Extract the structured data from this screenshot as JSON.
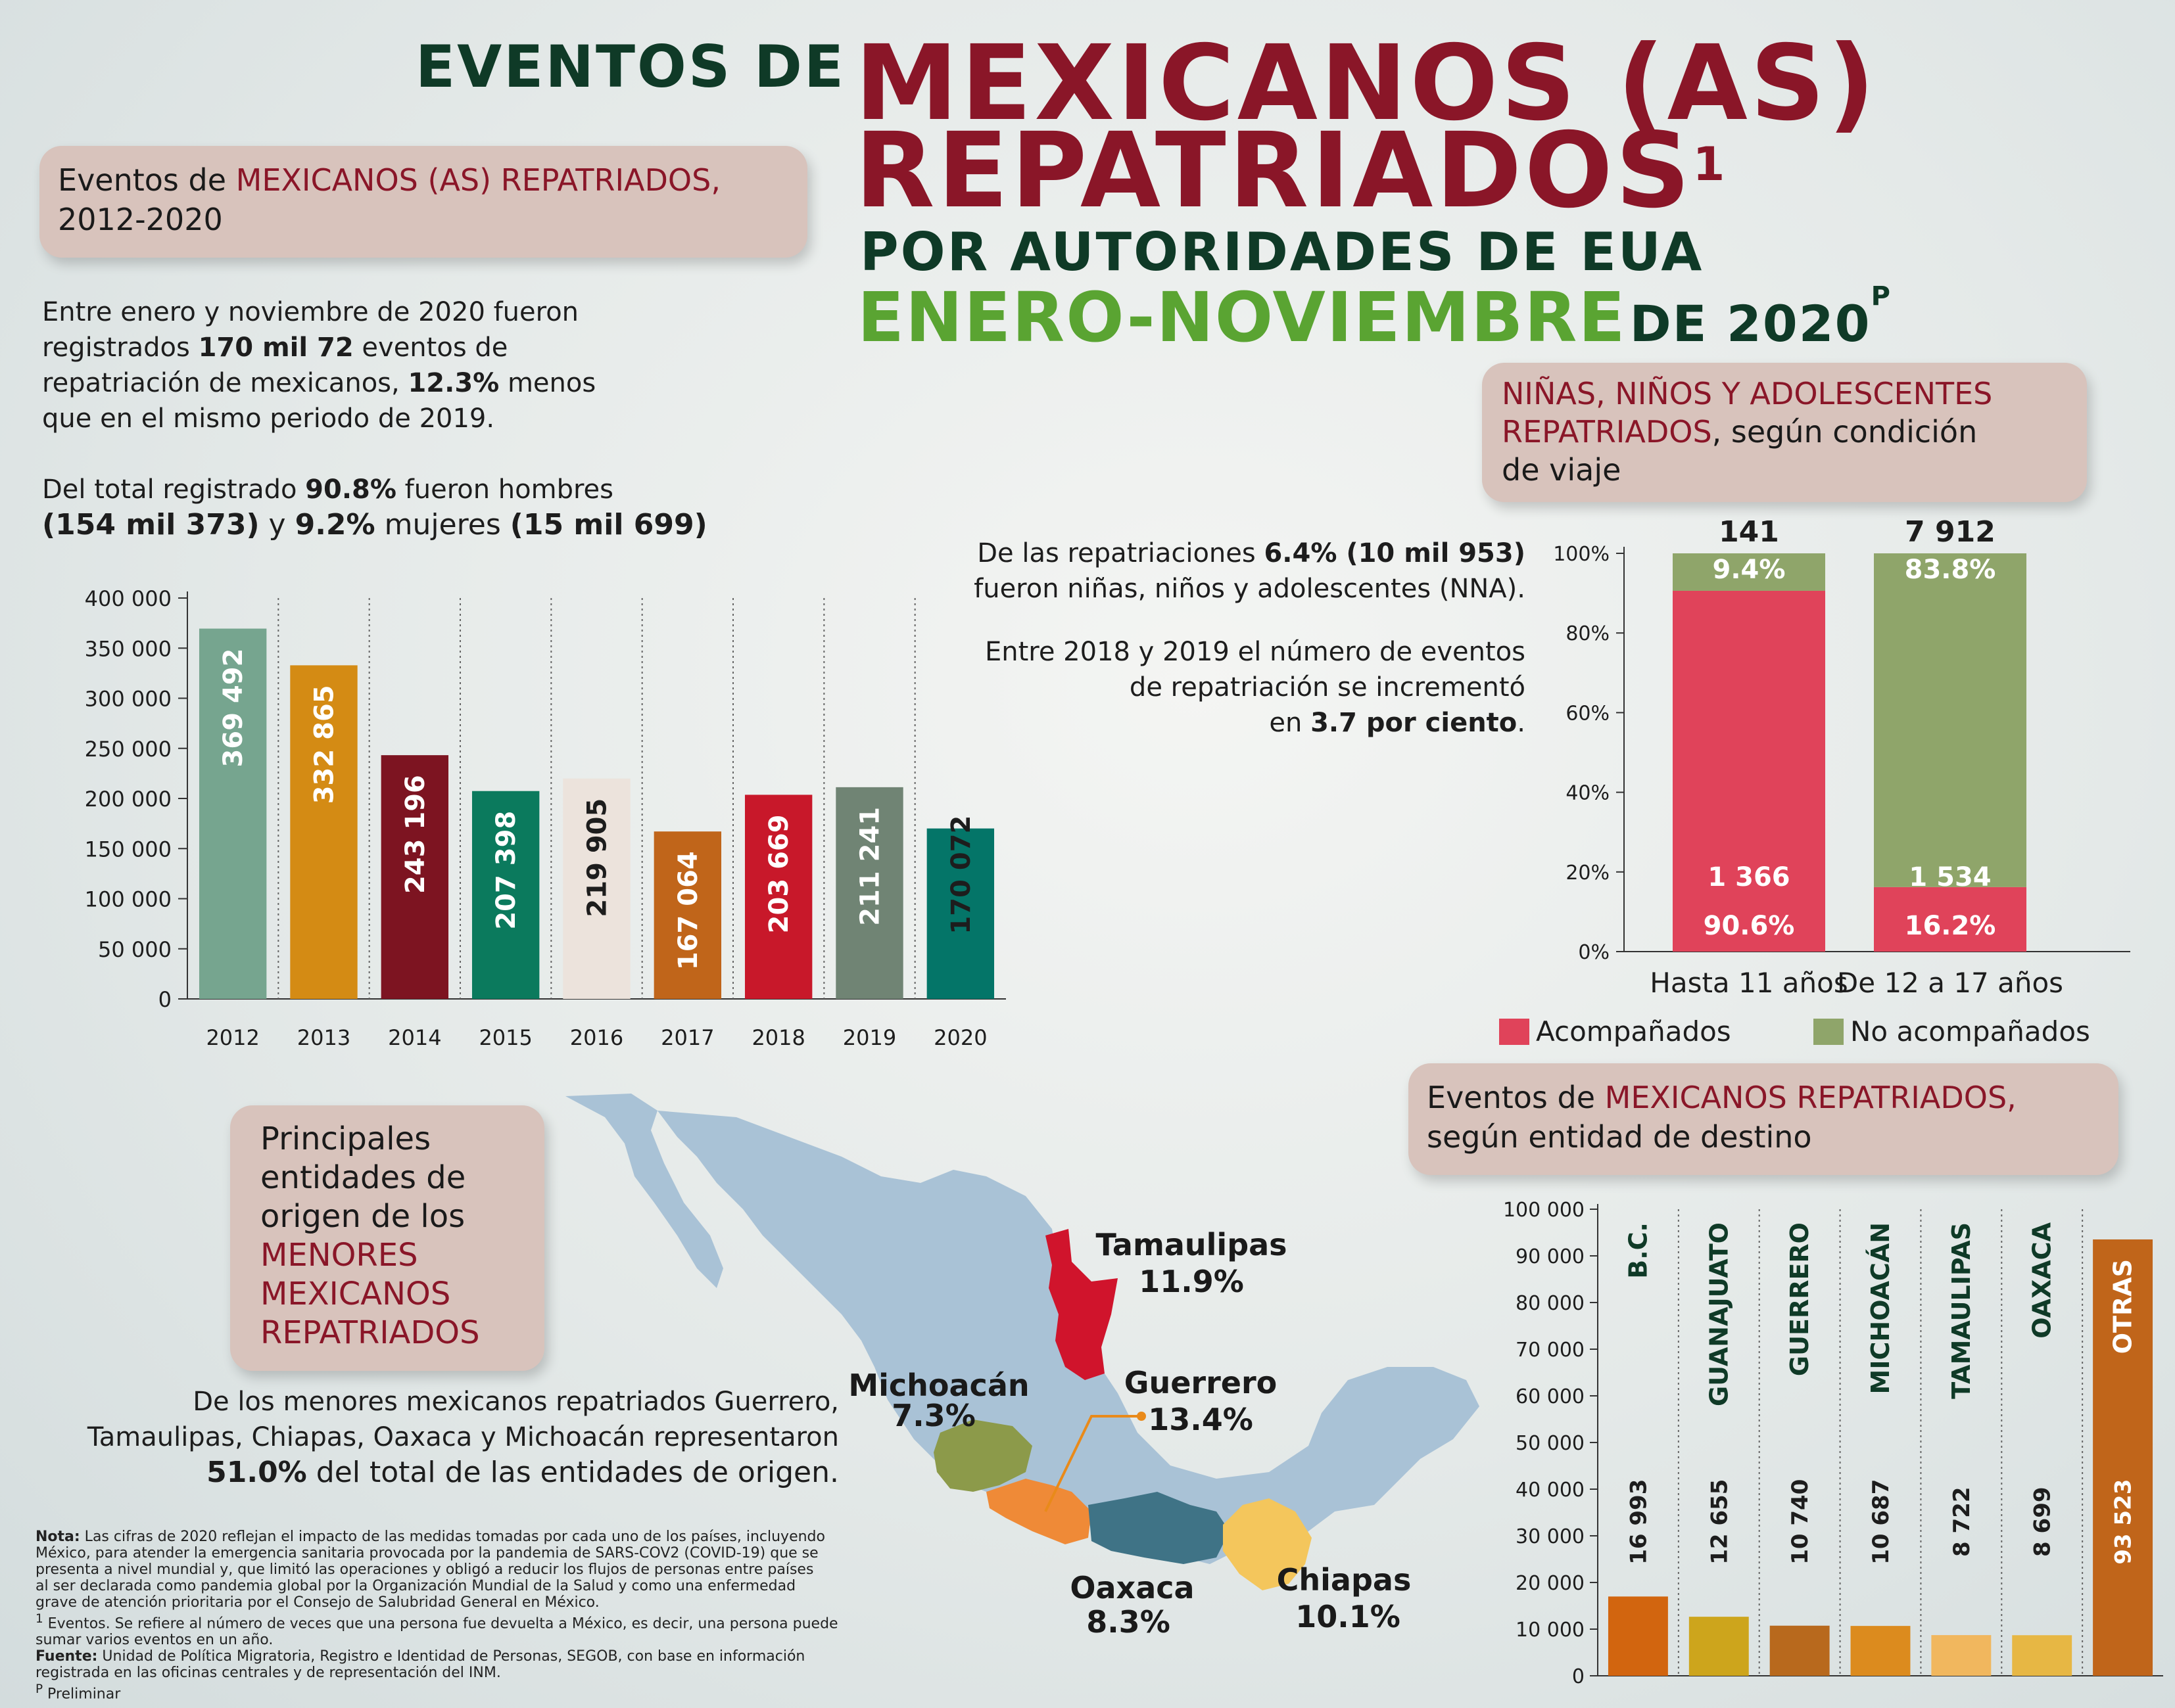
{
  "title": {
    "line1": "EVENTOS DE",
    "line2": "MEXICANOS (AS)",
    "line3": "REPATRIADOS",
    "line3_sup": "1",
    "line4": "POR AUTORIDADES DE EUA",
    "line5_a": "ENERO-NOVIEMBRE",
    "line5_b": "DE 2020",
    "line5_sup": "P"
  },
  "box_events": {
    "a": "Eventos de ",
    "b": "MEXICANOS (AS) REPATRIADOS,",
    "c": "2012-2020"
  },
  "intro": {
    "p1_a": "Entre enero y noviembre de 2020 fueron",
    "p1_b": "registrados ",
    "p1_b_bold": "170 mil 72",
    "p1_b_end": " eventos de",
    "p1_c": "repatriación de mexicanos, ",
    "p1_c_bold": "12.3%",
    "p1_c_end": " menos",
    "p1_d": "que en el mismo periodo de 2019.",
    "p2_a": "Del total registrado ",
    "p2_a_bold": "90.8%",
    "p2_a_end": " fueron hombres",
    "p2_b_bold1": "(154 mil 373)",
    "p2_b_mid": " y ",
    "p2_b_bold2": "9.2%",
    "p2_b_mid2": " mujeres ",
    "p2_b_bold3": "(15 mil 699)"
  },
  "nna_text": {
    "l1_a": "De las repatriaciones ",
    "l1_bold": "6.4% (10 mil 953)",
    "l2": "fueron niñas, niños y adolescentes (NNA).",
    "l3": "Entre 2018 y 2019 el número de eventos",
    "l4": "de repatriación se incrementó",
    "l5_a": "en ",
    "l5_bold": "3.7 por ciento",
    "l5_end": "."
  },
  "box_nna": {
    "a": "NIÑAS, NIÑOS Y ADOLESCENTES",
    "b": "REPATRIADOS",
    "c": ", según condición",
    "d": "de viaje"
  },
  "box_minors": {
    "a": "Principales",
    "b": "entidades de",
    "c": "origen de los",
    "d": "MENORES",
    "e": "MEXICANOS",
    "f": "REPATRIADOS"
  },
  "minors_text": {
    "l1": "De los menores mexicanos repatriados Guerrero,",
    "l2": "Tamaulipas, Chiapas, Oaxaca y Michoacán representaron",
    "l3_bold": "51.0%",
    "l3_end": " del total de las entidades de origen."
  },
  "box_dest": {
    "a": "Eventos de ",
    "b": "MEXICANOS REPATRIADOS,",
    "c": "según entidad de destino"
  },
  "map_labels": [
    {
      "name": "Tamaulipas",
      "value": "11.9%"
    },
    {
      "name": "Guerrero",
      "value": "13.4%"
    },
    {
      "name": "Michoacán",
      "value": "7.3%"
    },
    {
      "name": "Oaxaca",
      "value": "8.3%"
    },
    {
      "name": "Chiapas",
      "value": "10.1%"
    }
  ],
  "colors": {
    "tamaulipas": "#d0142c",
    "guerrero": "#ef8a37",
    "michoacan": "#8c9a4a",
    "oaxaca": "#3f7386",
    "chiapas": "#f4c65c",
    "map_base": "#a9c2d6"
  },
  "chart_data": [
    {
      "type": "bar",
      "categories": [
        "2012",
        "2013",
        "2014",
        "2015",
        "2016",
        "2017",
        "2018",
        "2019",
        "2020"
      ],
      "values": [
        369492,
        332865,
        243196,
        207398,
        219905,
        167064,
        203669,
        211241,
        170072
      ],
      "value_labels": [
        "369 492",
        "332 865",
        "243 196",
        "207 398",
        "219 905",
        "167 064",
        "203 669",
        "211 241",
        "170 072"
      ],
      "colors": [
        "#76a58f",
        "#d48b14",
        "#7d1421",
        "#0b7a5d",
        "#ece3dc",
        "#c0651a",
        "#c8182a",
        "#708474",
        "#047568"
      ],
      "ylim": [
        0,
        400000
      ],
      "yticks": [
        "0",
        "50 000",
        "100 000",
        "150 000",
        "200 000",
        "250 000",
        "300 000",
        "350 000",
        "400 000"
      ]
    },
    {
      "type": "bar",
      "stacked": true,
      "categories": [
        "Hasta 11 años",
        "De 12 a 17 años"
      ],
      "totals_top": [
        "141",
        "7 912"
      ],
      "series": [
        {
          "name": "Acompañados",
          "color": "#e0435a",
          "percent": [
            90.6,
            16.2
          ],
          "percent_labels": [
            "90.6%",
            "16.2%"
          ],
          "counts": [
            "1 366",
            "1 534"
          ]
        },
        {
          "name": "No acompañados",
          "color": "#8fa56a",
          "percent": [
            9.4,
            83.8
          ],
          "percent_labels": [
            "9.4%",
            "83.8%"
          ]
        }
      ],
      "yticks": [
        "0%",
        "20%",
        "40%",
        "60%",
        "80%",
        "100%"
      ],
      "ylim": [
        0,
        100
      ]
    },
    {
      "type": "bar",
      "categories": [
        "B.C.",
        "GUANAJUATO",
        "GUERRERO",
        "MICHOACÁN",
        "TAMAULIPAS",
        "OAXACA",
        "OTRAS"
      ],
      "values": [
        16993,
        12655,
        10740,
        10687,
        8722,
        8699,
        93523
      ],
      "value_labels": [
        "16 993",
        "12 655",
        "10 740",
        "10 687",
        "8 722",
        "8 699",
        "93 523"
      ],
      "colors": [
        "#d2650f",
        "#cda51c",
        "#b8691d",
        "#dc8b1e",
        "#f1b75e",
        "#e7b744",
        "#c0651a"
      ],
      "ylim": [
        0,
        100000
      ],
      "yticks": [
        "0",
        "10 000",
        "20 000",
        "30 000",
        "40 000",
        "50 000",
        "60 000",
        "70 000",
        "80 000",
        "90 000",
        "100 000"
      ]
    }
  ],
  "notes": {
    "nota_label": "Nota:",
    "nota_1": " Las cifras de 2020 reflejan el impacto de las medidas tomadas por cada uno de los países, incluyendo",
    "nota_2": "México, para atender la emergencia sanitaria provocada por la pandemia de SARS-COV2 (COVID-19) que se",
    "nota_3": "presenta a nivel mundial y, que limitó las operaciones y obligó a reducir los flujos de personas entre países",
    "nota_4": "al ser declarada como pandemia global por la Organización Mundial de la Salud y como una enfermedad",
    "nota_5": "grave de atención prioritaria por el Consejo de Salubridad General en México.",
    "n1_sup": "1",
    "n1_a": "  Eventos. Se refiere al número de veces que una persona fue devuelta a México, es decir, una persona puede",
    "n1_b": "sumar varios eventos en un año.",
    "fuente_label": "Fuente:",
    "fuente_a": " Unidad de Política Migratoria, Registro e Identidad de Personas, SEGOB, con base en información",
    "fuente_b": "registrada en las oficinas centrales y de representación del INM.",
    "prelim_sup": "P",
    "prelim": " Preliminar"
  }
}
